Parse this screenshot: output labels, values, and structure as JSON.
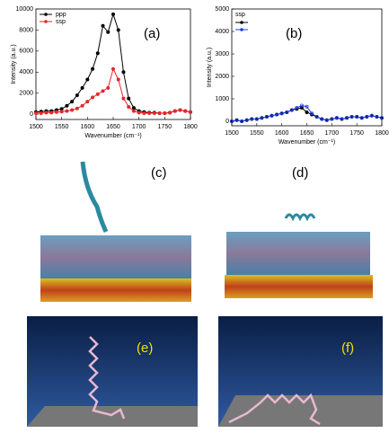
{
  "chart_data": [
    {
      "type": "line",
      "panel_label": "(a)",
      "x_label": "Wavenumber (cm⁻¹)",
      "y_label": "Intensity (a.u.)",
      "x": [
        1500,
        1510,
        1520,
        1530,
        1540,
        1550,
        1560,
        1570,
        1580,
        1590,
        1600,
        1610,
        1620,
        1630,
        1640,
        1650,
        1660,
        1670,
        1680,
        1690,
        1700,
        1710,
        1720,
        1730,
        1740,
        1750,
        1760,
        1770,
        1780,
        1790,
        1800
      ],
      "series": [
        {
          "name": "ppp",
          "color": "#000000",
          "values": [
            200,
            250,
            300,
            300,
            400,
            500,
            800,
            1200,
            1800,
            2500,
            3300,
            4300,
            5800,
            8400,
            7800,
            9500,
            8000,
            4000,
            1500,
            600,
            300,
            200,
            150,
            150,
            100,
            100,
            150,
            300,
            400,
            300,
            200
          ]
        },
        {
          "name": "ssp",
          "color": "#e8262a",
          "values": [
            100,
            100,
            150,
            150,
            200,
            250,
            300,
            400,
            550,
            800,
            1200,
            1600,
            1900,
            2200,
            2500,
            4300,
            3300,
            1500,
            700,
            300,
            150,
            100,
            100,
            100,
            100,
            100,
            150,
            300,
            400,
            300,
            200
          ]
        }
      ],
      "xlim": [
        1500,
        1800
      ],
      "xticks": [
        1500,
        1550,
        1600,
        1650,
        1700,
        1750,
        1800
      ],
      "ylim": [
        -500,
        10000
      ],
      "yticks": [
        0,
        2000,
        4000,
        6000,
        8000,
        10000
      ],
      "legend": "upper left"
    },
    {
      "type": "line",
      "panel_label": "(b)",
      "x_label": "Wavenumber (cm⁻¹)",
      "y_label": "Intensity (a.u.)",
      "legend_title": "ssp",
      "x": [
        1500,
        1510,
        1520,
        1530,
        1540,
        1550,
        1560,
        1570,
        1580,
        1590,
        1600,
        1610,
        1620,
        1630,
        1640,
        1650,
        1660,
        1670,
        1680,
        1690,
        1700,
        1710,
        1720,
        1730,
        1740,
        1750,
        1760,
        1770,
        1780,
        1790,
        1800
      ],
      "series": [
        {
          "color": "#000000",
          "values": [
            0,
            50,
            0,
            50,
            100,
            100,
            150,
            200,
            250,
            300,
            350,
            400,
            500,
            550,
            600,
            400,
            300,
            200,
            100,
            50,
            100,
            150,
            100,
            150,
            200,
            200,
            150,
            200,
            250,
            200,
            150
          ]
        },
        {
          "color": "#1f3fe0",
          "values": [
            0,
            50,
            0,
            50,
            100,
            100,
            150,
            200,
            250,
            300,
            350,
            400,
            500,
            600,
            700,
            650,
            350,
            200,
            100,
            50,
            100,
            150,
            100,
            150,
            200,
            200,
            150,
            200,
            250,
            200,
            150
          ]
        }
      ],
      "xlim": [
        1500,
        1800
      ],
      "xticks": [
        1500,
        1550,
        1600,
        1650,
        1700,
        1750,
        1800
      ],
      "ylim": [
        -200,
        5000
      ],
      "yticks": [
        0,
        1000,
        2000,
        3000,
        4000,
        5000
      ],
      "legend": "upper left"
    }
  ],
  "panels": [
    {
      "label": "(c)"
    },
    {
      "label": "(d)"
    },
    {
      "label": "(e)"
    },
    {
      "label": "(f)"
    }
  ]
}
